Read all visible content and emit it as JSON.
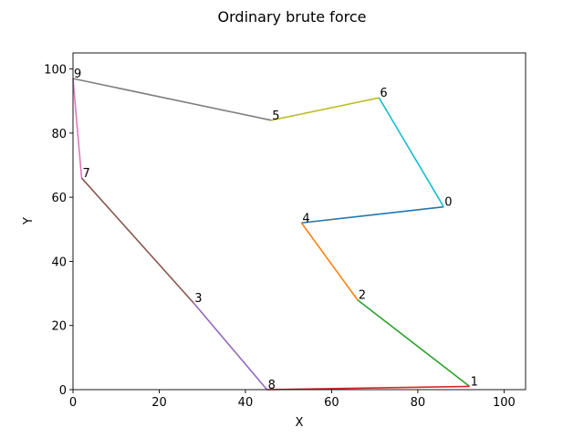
{
  "chart_data": {
    "type": "line",
    "title": "Ordinary brute force",
    "xlabel": "X",
    "ylabel": "Y",
    "xlim": [
      0,
      105
    ],
    "ylim": [
      0,
      105
    ],
    "xticks": [
      "0",
      "20",
      "40",
      "60",
      "80",
      "100"
    ],
    "yticks": [
      "0",
      "20",
      "40",
      "60",
      "80",
      "100"
    ],
    "grid": false,
    "points": [
      {
        "label": "0",
        "x": 86,
        "y": 57
      },
      {
        "label": "1",
        "x": 92,
        "y": 1
      },
      {
        "label": "2",
        "x": 66,
        "y": 28
      },
      {
        "label": "3",
        "x": 28,
        "y": 27
      },
      {
        "label": "4",
        "x": 53,
        "y": 52
      },
      {
        "label": "5",
        "x": 46,
        "y": 84
      },
      {
        "label": "6",
        "x": 71,
        "y": 91
      },
      {
        "label": "7",
        "x": 2,
        "y": 66
      },
      {
        "label": "8",
        "x": 45,
        "y": 0
      },
      {
        "label": "9",
        "x": 0,
        "y": 97
      }
    ],
    "segments": [
      {
        "from": "0",
        "to": "4",
        "color": "#1f77b4"
      },
      {
        "from": "4",
        "to": "2",
        "color": "#ff7f0e"
      },
      {
        "from": "2",
        "to": "1",
        "color": "#2ca02c"
      },
      {
        "from": "1",
        "to": "8",
        "color": "#d62728"
      },
      {
        "from": "8",
        "to": "3",
        "color": "#9467bd"
      },
      {
        "from": "3",
        "to": "7",
        "color": "#8c564b"
      },
      {
        "from": "7",
        "to": "9",
        "color": "#e377c2"
      },
      {
        "from": "9",
        "to": "5",
        "color": "#7f7f7f"
      },
      {
        "from": "5",
        "to": "6",
        "color": "#bcbd22"
      },
      {
        "from": "6",
        "to": "0",
        "color": "#17becf"
      }
    ]
  }
}
